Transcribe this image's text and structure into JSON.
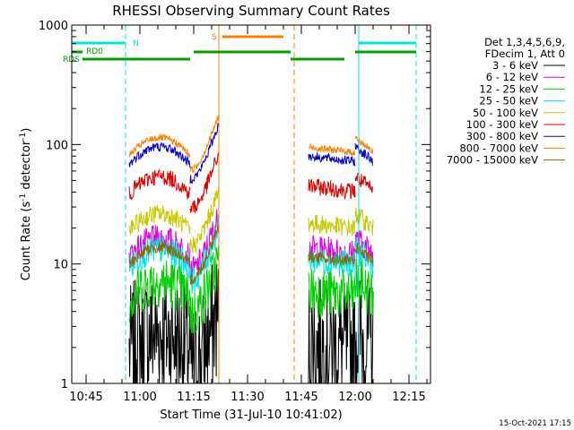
{
  "chart_data": {
    "type": "line",
    "title": "RHESSI Observing Summary Count Rates",
    "xlabel": "Start Time (31-Jul-10 10:41:02)",
    "ylabel_main": "Count Rate (s",
    "ylabel_sup1": "-1",
    "ylabel_mid": " detector",
    "ylabel_sup2": "-1",
    "ylabel_end": ")",
    "yscale": "log",
    "ylim": [
      1,
      1000
    ],
    "xlim": [
      "10:41",
      "12:21"
    ],
    "x_ticks": [
      "10:45",
      "11:00",
      "11:15",
      "11:30",
      "11:45",
      "12:00",
      "12:15"
    ],
    "y_ticks": [
      "1",
      "10",
      "100",
      "1000"
    ],
    "timestamp": "15-Oct-2021 17:15",
    "legend_header": [
      "Det 1,3,4,5,6,9,",
      "FDecim 1, Att 0"
    ],
    "legend_placement": "right",
    "series": [
      {
        "name": "3 - 6 keV",
        "color": "#000000",
        "mean": 2.2,
        "jitter": 0.55
      },
      {
        "name": "6 - 12 keV",
        "color": "#e000e0",
        "mean": 13.5,
        "jitter": 0.12
      },
      {
        "name": "12 - 25 keV",
        "color": "#00d000",
        "mean": 6.0,
        "jitter": 0.22
      },
      {
        "name": "25 - 50 keV",
        "color": "#00e5e5",
        "mean": 11.0,
        "jitter": 0.12
      },
      {
        "name": "50 - 100 keV",
        "color": "#c8c800",
        "mean": 22.0,
        "jitter": 0.08
      },
      {
        "name": "100 - 300 keV",
        "color": "#e00000",
        "mean": 45.0,
        "jitter": 0.07
      },
      {
        "name": "300 - 800 keV",
        "color": "#0000d0",
        "mean": 80.0,
        "jitter": 0.04
      },
      {
        "name": "800 - 7000 keV",
        "color": "#ff8000",
        "mean": 95.0,
        "jitter": 0.03
      },
      {
        "name": "7000 - 15000 keV",
        "color": "#8b6a00",
        "mean": 11.5,
        "jitter": 0.05
      }
    ],
    "segments": [
      {
        "start": "10:57",
        "end": "11:14",
        "profile": "dome"
      },
      {
        "start": "11:14",
        "end": "11:22",
        "profile": "rise"
      },
      {
        "start": "11:47",
        "end": "12:00",
        "profile": "flat"
      },
      {
        "start": "12:00",
        "end": "12:05",
        "profile": "decay"
      }
    ],
    "flags": [
      {
        "label": "RD0",
        "color": "#00a000"
      },
      {
        "label": "RDS",
        "color": "#00a000"
      },
      {
        "label": "N",
        "color": "#00e5e5"
      },
      {
        "label": "S",
        "color": "#ff8000"
      }
    ],
    "flag_bars": [
      {
        "flag": "N",
        "start": "10:41",
        "end": "10:56"
      },
      {
        "flag": "N",
        "start": "12:01",
        "end": "12:17"
      },
      {
        "flag": "S",
        "start": "11:23",
        "end": "11:40"
      },
      {
        "flag": "RD0",
        "start": "10:41",
        "end": "10:44"
      },
      {
        "flag": "RD0",
        "start": "11:15",
        "end": "11:42"
      },
      {
        "flag": "RD0",
        "start": "12:00",
        "end": "12:17"
      },
      {
        "flag": "RDS",
        "start": "10:44",
        "end": "11:14"
      },
      {
        "flag": "RDS",
        "start": "11:42",
        "end": "11:57"
      }
    ],
    "vertical_markers": [
      {
        "time": "10:41",
        "color": "#00e5e5",
        "style": "solid"
      },
      {
        "time": "10:56",
        "color": "#00e5e5",
        "style": "dashed"
      },
      {
        "time": "11:22",
        "color": "#ff8000",
        "style": "solid"
      },
      {
        "time": "11:43",
        "color": "#ff8000",
        "style": "dashed"
      },
      {
        "time": "12:01",
        "color": "#00e5e5",
        "style": "solid"
      },
      {
        "time": "12:17",
        "color": "#00e5e5",
        "style": "dashed"
      }
    ]
  }
}
